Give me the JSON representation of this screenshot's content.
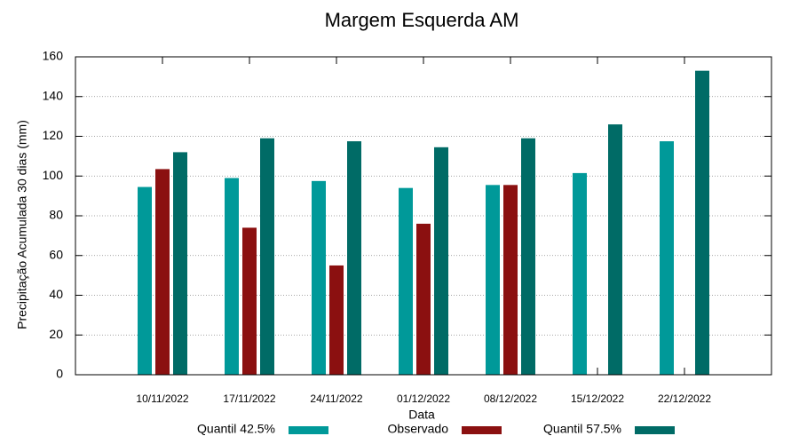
{
  "chart_data": {
    "type": "bar",
    "title": "Margem Esquerda AM",
    "x_label": "Data",
    "y_label": "Precipitação Acumulada 30 dias (mm)",
    "categories": [
      "10/11/2022",
      "17/11/2022",
      "24/11/2022",
      "01/12/2022",
      "08/12/2022",
      "15/12/2022",
      "22/12/2022"
    ],
    "series": [
      {
        "name": "Quantil 42.5%",
        "color": "#009999",
        "values": [
          94.5,
          99,
          97.5,
          94,
          95.5,
          101.5,
          117.5
        ]
      },
      {
        "name": "Observado",
        "color": "#8b1010",
        "values": [
          103.5,
          74,
          55,
          76,
          95.5,
          null,
          null
        ]
      },
      {
        "name": "Quantil 57.5%",
        "color": "#006b66",
        "values": [
          112,
          119,
          117.5,
          114.5,
          119,
          126,
          153
        ]
      }
    ],
    "ylim": [
      0,
      160
    ],
    "yticks": [
      0,
      20,
      40,
      60,
      80,
      100,
      120,
      140,
      160
    ],
    "grid": true,
    "legend": "bottom"
  }
}
